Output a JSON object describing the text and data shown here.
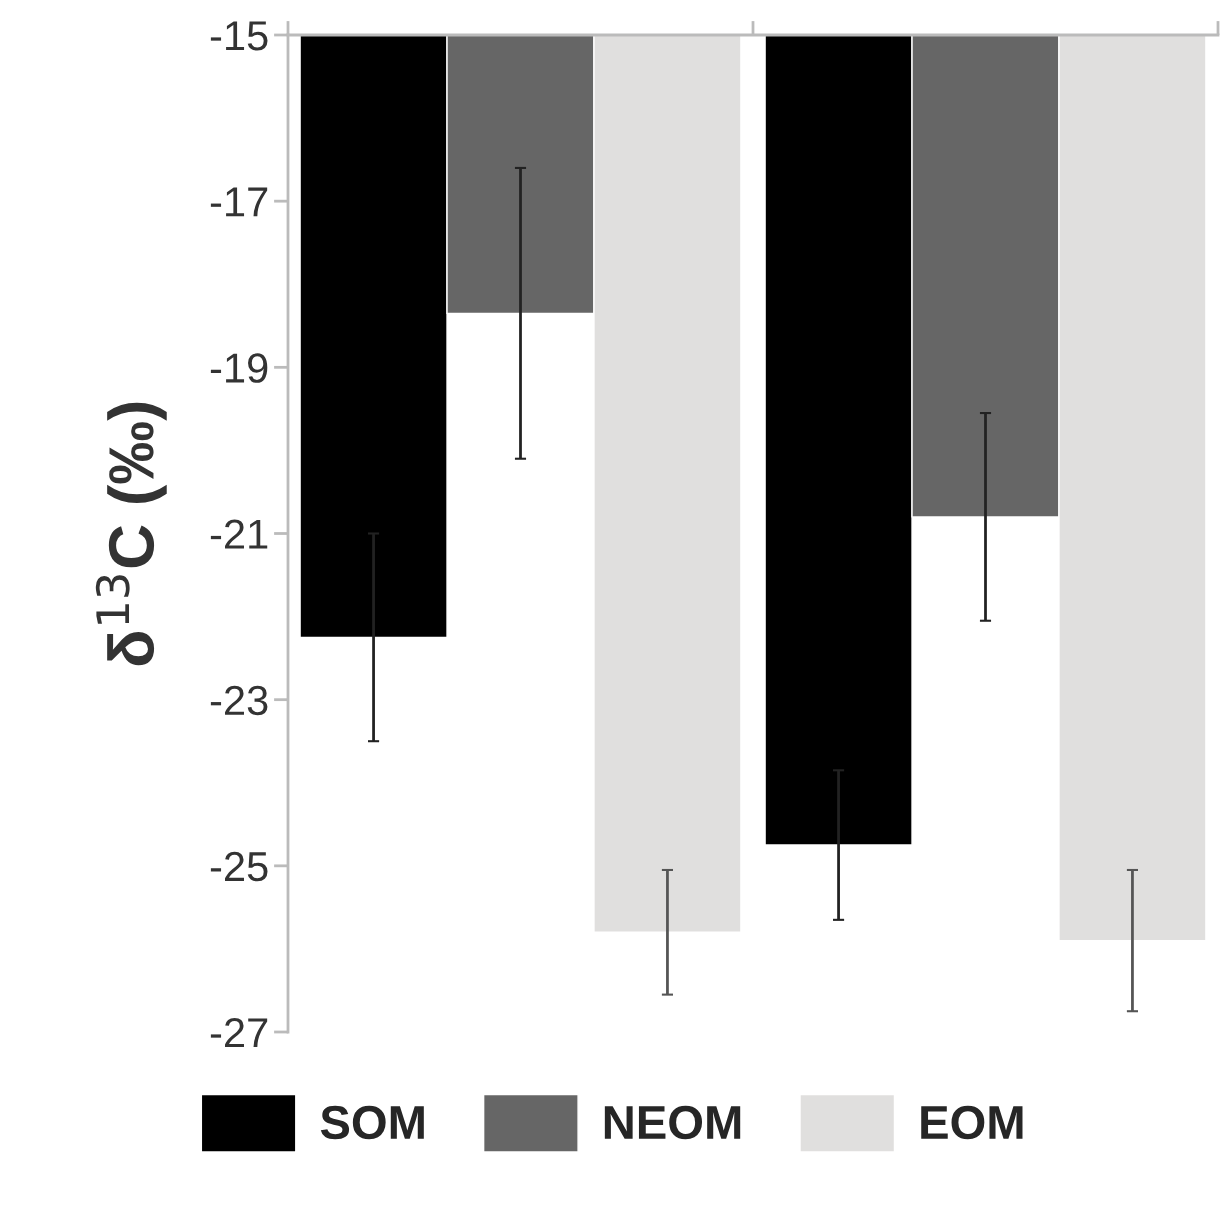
{
  "chart_data": {
    "type": "bar",
    "ylabel": "δ$^{13}$C (‰)",
    "categories": [
      null,
      null
    ],
    "series": [
      {
        "name": "SOM",
        "color": "#000000",
        "values": [
          -22.25,
          -24.75
        ],
        "errors": [
          1.25,
          0.9
        ]
      },
      {
        "name": "NEOM",
        "color": "#666666",
        "values": [
          -18.35,
          -20.8
        ],
        "errors": [
          1.75,
          1.25
        ]
      },
      {
        "name": "EOM",
        "color": "#e0dfde",
        "values": [
          -25.8,
          -25.9
        ],
        "errors": [
          0.75,
          0.85
        ]
      }
    ],
    "ylim": [
      -27,
      -15
    ],
    "yticks": [
      -27,
      -25,
      -23,
      -21,
      -19,
      -17,
      -15
    ],
    "grid": false,
    "legend": "bottom"
  }
}
